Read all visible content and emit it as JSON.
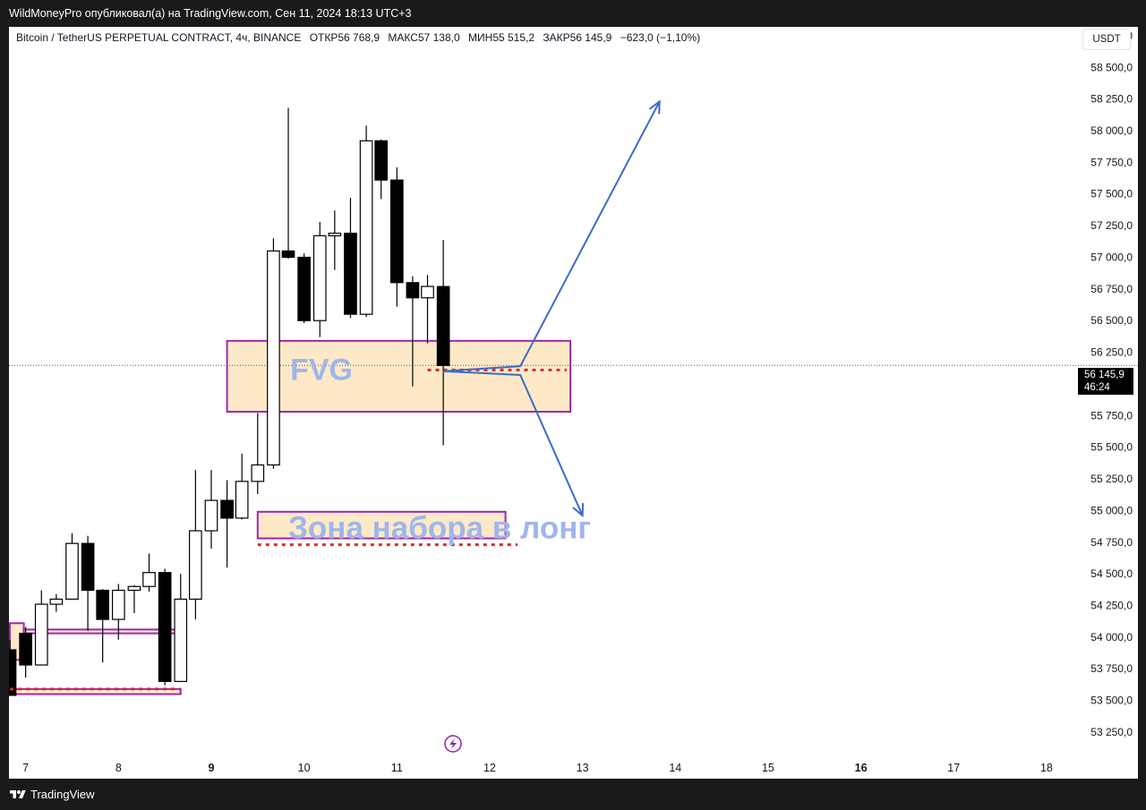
{
  "header": {
    "caption": "WildMoneyPro опубликовал(а) на TradingView.com, Сен 11, 2024 18:13 UTC+3"
  },
  "legend": {
    "symbol": "Bitcoin / TetherUS PERPETUAL CONTRACT, 4ч, BINANCE",
    "open_label": "ОТКР",
    "open_value": "56 768,9",
    "high_label": "МАКС",
    "high_value": "57 138,0",
    "low_label": "МИН",
    "low_value": "55 515,2",
    "close_label": "ЗАКР",
    "close_value": "56 145,9",
    "change": "−623,0 (−1,10%)"
  },
  "currency_button": "USDT",
  "price_tag": {
    "price": "56 145,9",
    "countdown": "46:24"
  },
  "annotations": {
    "fvg_label": "FVG",
    "long_zone_label": "Зона набора в лонг"
  },
  "footer": {
    "brand": "TradingView"
  },
  "colors": {
    "up_candle_fill": "#ffffff",
    "down_candle_fill": "#000000",
    "zone_fill": "#fde9c7",
    "zone_border": "#9c27b0",
    "arrow": "#3d6bc9",
    "dotted_line": "#d32f2f",
    "text_overlay": "#9fb6ea"
  },
  "chart_data": {
    "type": "candlestick",
    "timeframe": "4ч",
    "y_axis": {
      "ticks": [
        53250,
        53500,
        53750,
        54000,
        54250,
        54500,
        54750,
        55000,
        55250,
        55500,
        55750,
        56000,
        56250,
        56500,
        56750,
        57000,
        57250,
        57500,
        57750,
        58000,
        58250,
        58500,
        58750
      ],
      "tick_labels": [
        "53 250,0",
        "53 500,0",
        "53 750,0",
        "54 000,0",
        "54 250,0",
        "54 500,0",
        "54 750,0",
        "55 000,0",
        "55 250,0",
        "55 500,0",
        "55 750,0",
        "56 000,0",
        "56 250,0",
        "56 500,0",
        "56 750,0",
        "57 000,0",
        "57 250,0",
        "57 500,0",
        "57 750,0",
        "58 000,0",
        "58 250,0",
        "58 500,0",
        "58 750,0"
      ],
      "range": [
        53080,
        58820
      ]
    },
    "x_axis": {
      "ticks": [
        7,
        8,
        9,
        10,
        11,
        12,
        13,
        14,
        15,
        16,
        17,
        18
      ],
      "tick_labels": [
        "7",
        "8",
        "9",
        "10",
        "11",
        "12",
        "13",
        "14",
        "15",
        "16",
        "17",
        "18"
      ],
      "bold_ticks": [
        "9",
        "16"
      ],
      "range": [
        6.82,
        18.3
      ],
      "unit": "day (Sep 2024)"
    },
    "candles": [
      {
        "t": 6.83,
        "o": 53900,
        "h": 53980,
        "l": 53540,
        "c": 53540
      },
      {
        "t": 7.0,
        "o": 54030,
        "h": 54080,
        "l": 53680,
        "c": 53780
      },
      {
        "t": 7.17,
        "o": 53780,
        "h": 54370,
        "l": 53780,
        "c": 54260
      },
      {
        "t": 7.33,
        "o": 54260,
        "h": 54340,
        "l": 54200,
        "c": 54300
      },
      {
        "t": 7.5,
        "o": 54300,
        "h": 54820,
        "l": 54300,
        "c": 54740
      },
      {
        "t": 7.67,
        "o": 54740,
        "h": 54800,
        "l": 54050,
        "c": 54370
      },
      {
        "t": 7.83,
        "o": 54370,
        "h": 54380,
        "l": 53800,
        "c": 54140
      },
      {
        "t": 8.0,
        "o": 54140,
        "h": 54420,
        "l": 53980,
        "c": 54370
      },
      {
        "t": 8.17,
        "o": 54370,
        "h": 54410,
        "l": 54190,
        "c": 54400
      },
      {
        "t": 8.33,
        "o": 54400,
        "h": 54660,
        "l": 54360,
        "c": 54510
      },
      {
        "t": 8.5,
        "o": 54510,
        "h": 54540,
        "l": 53620,
        "c": 53650
      },
      {
        "t": 8.67,
        "o": 53650,
        "h": 54500,
        "l": 53650,
        "c": 54300
      },
      {
        "t": 8.83,
        "o": 54300,
        "h": 55320,
        "l": 54140,
        "c": 54840
      },
      {
        "t": 9.0,
        "o": 54840,
        "h": 55320,
        "l": 54700,
        "c": 55080
      },
      {
        "t": 9.17,
        "o": 55080,
        "h": 55240,
        "l": 54550,
        "c": 54940
      },
      {
        "t": 9.33,
        "o": 54940,
        "h": 55450,
        "l": 54930,
        "c": 55230
      },
      {
        "t": 9.5,
        "o": 55230,
        "h": 55770,
        "l": 55130,
        "c": 55360
      },
      {
        "t": 9.67,
        "o": 55360,
        "h": 57150,
        "l": 55330,
        "c": 57050
      },
      {
        "t": 9.83,
        "o": 57050,
        "h": 58180,
        "l": 56990,
        "c": 57000
      },
      {
        "t": 10.0,
        "o": 57000,
        "h": 57030,
        "l": 56480,
        "c": 56500
      },
      {
        "t": 10.17,
        "o": 56500,
        "h": 57280,
        "l": 56370,
        "c": 57170
      },
      {
        "t": 10.33,
        "o": 57170,
        "h": 57370,
        "l": 56900,
        "c": 57190
      },
      {
        "t": 10.5,
        "o": 57190,
        "h": 57470,
        "l": 56520,
        "c": 56550
      },
      {
        "t": 10.67,
        "o": 56550,
        "h": 58040,
        "l": 56530,
        "c": 57920
      },
      {
        "t": 10.83,
        "o": 57920,
        "h": 57930,
        "l": 57460,
        "c": 57610
      },
      {
        "t": 11.0,
        "o": 57610,
        "h": 57710,
        "l": 56610,
        "c": 56800
      },
      {
        "t": 11.17,
        "o": 56800,
        "h": 56850,
        "l": 55980,
        "c": 56680
      },
      {
        "t": 11.33,
        "o": 56680,
        "h": 56860,
        "l": 56320,
        "c": 56770
      },
      {
        "t": 11.5,
        "o": 56768.9,
        "h": 57138.0,
        "l": 55515.2,
        "c": 56145.9
      }
    ],
    "current_price": 56145.9,
    "zones": [
      {
        "name": "FVG",
        "x0": 9.17,
        "x1": 12.87,
        "y0": 55780,
        "y1": 56340
      },
      {
        "name": "Зона набора в лонг",
        "x0": 9.5,
        "x1": 12.17,
        "y0": 54780,
        "y1": 54990
      },
      {
        "name": "",
        "x0": 6.83,
        "x1": 6.98,
        "y0": 53820,
        "y1": 54110
      },
      {
        "name": "",
        "x0": 6.98,
        "x1": 8.67,
        "y0": 54030,
        "y1": 54060
      },
      {
        "name": "",
        "x0": 6.83,
        "x1": 8.67,
        "y0": 53550,
        "y1": 53590
      }
    ],
    "dotted_lines": [
      {
        "x0": 11.33,
        "x1": 12.83,
        "y": 56110
      },
      {
        "x0": 9.5,
        "x1": 12.3,
        "y": 54730
      },
      {
        "x0": 6.83,
        "x1": 8.67,
        "y": 53590
      }
    ],
    "arrows": [
      {
        "from": [
          11.5,
          56100
        ],
        "via": [
          12.33,
          56140
        ],
        "to": [
          13.83,
          58230
        ]
      },
      {
        "from": [
          11.5,
          56100
        ],
        "via": [
          12.33,
          56070
        ],
        "to": [
          13.0,
          54960
        ]
      }
    ]
  }
}
